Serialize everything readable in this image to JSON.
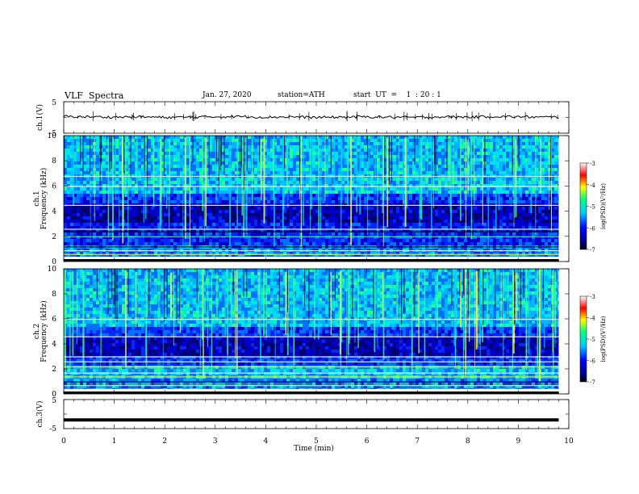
{
  "header": {
    "title": "VLF  Spectra",
    "date": "Jan. 27, 2020",
    "station": "station=ATH",
    "start_ut": "start  UT  =    1  : 20 : 1"
  },
  "chart_data": [
    {
      "type": "line",
      "panel": "ch1-waveform",
      "ylabel": "ch.1(V)",
      "yticks": [
        "5",
        "-5"
      ],
      "ylim": [
        -5,
        5
      ],
      "x": [
        0,
        0.5,
        1,
        1.5,
        2,
        2.5,
        3,
        3.5,
        4,
        4.5,
        5,
        5.5,
        6,
        6.5,
        7,
        7.5,
        8,
        8.5,
        9,
        9.5,
        9.8
      ],
      "values": [
        0.3,
        0.2,
        0.1,
        0.2,
        0.0,
        0.1,
        0.2,
        0.3,
        0.1,
        0.2,
        0.0,
        0.1,
        0.2,
        0.1,
        0.0,
        0.2,
        0.1,
        0.3,
        0.2,
        0.1,
        0.1
      ],
      "line_color": "#000000"
    },
    {
      "type": "heatmap",
      "panel": "ch1-spectrogram",
      "ylabel_outer": "ch.1",
      "ylabel": "Frequency  (kHz)",
      "yticks": [
        "0",
        "2",
        "4",
        "6",
        "8",
        "10"
      ],
      "ylim": [
        0,
        10
      ],
      "xlim": [
        0,
        10
      ],
      "data_end_min": 9.8,
      "colorbar": {
        "label": "log(PSD)(V²/Hz)",
        "ticks": [
          "-3",
          "-4",
          "-5",
          "-6",
          "-7"
        ],
        "range": [
          -7,
          -3
        ]
      }
    },
    {
      "type": "heatmap",
      "panel": "ch2-spectrogram",
      "ylabel_outer": "ch.2",
      "ylabel": "Frequency  (kHz)",
      "yticks": [
        "0",
        "2",
        "4",
        "6",
        "8",
        "10"
      ],
      "ylim": [
        0,
        10
      ],
      "xlim": [
        0,
        10
      ],
      "data_end_min": 9.8,
      "colorbar": {
        "label": "log(PSD)(V²/Hz)",
        "ticks": [
          "-3",
          "-4",
          "-5",
          "-6",
          "-7"
        ],
        "range": [
          -7,
          -3
        ]
      }
    },
    {
      "type": "line",
      "panel": "ch3-waveform",
      "ylabel": "ch.3(V)",
      "yticks": [
        "5",
        "-5"
      ],
      "ylim": [
        -5,
        5
      ],
      "x": [
        0,
        9.8
      ],
      "values": [
        -2,
        -2
      ],
      "line_color": "#000000"
    }
  ],
  "xaxis": {
    "label": "Time  (min)",
    "ticks": [
      "0",
      "1",
      "2",
      "3",
      "4",
      "5",
      "6",
      "7",
      "8",
      "9",
      "10"
    ],
    "xlim": [
      0,
      10
    ]
  },
  "colors": {
    "background_dark": "#000090",
    "low": "#0000ff",
    "mid": "#00c8ff",
    "high": "#ffff00",
    "peak": "#ff0000"
  }
}
